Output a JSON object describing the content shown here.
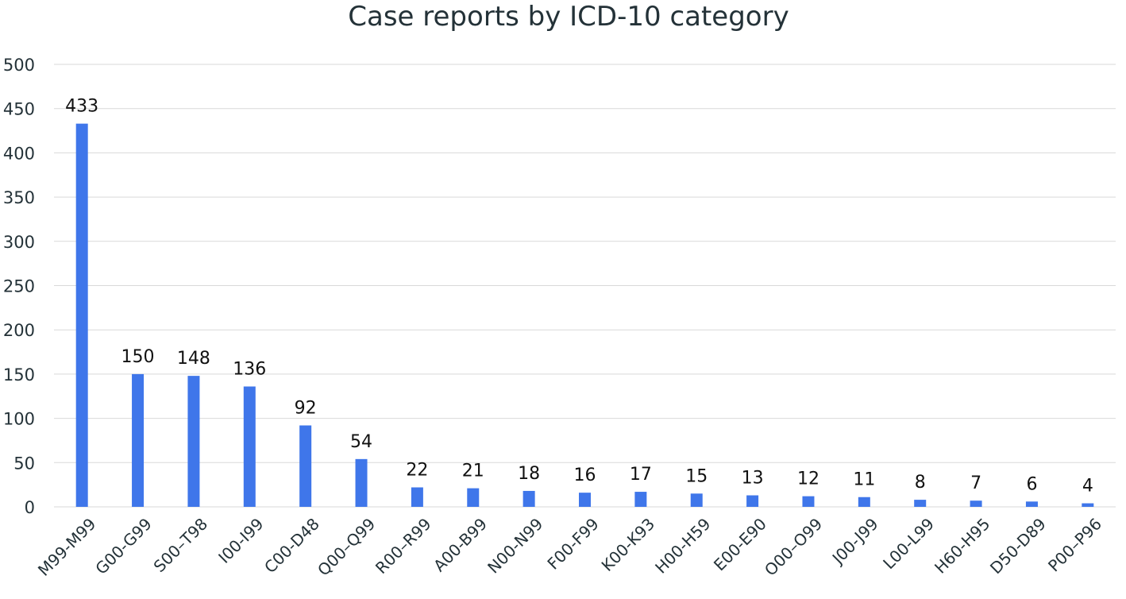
{
  "chart_data": {
    "type": "bar",
    "title": "Case reports by ICD-10 category",
    "xlabel": "",
    "ylabel": "",
    "ylim": [
      0,
      500
    ],
    "yticks": [
      0,
      50,
      100,
      150,
      200,
      250,
      300,
      350,
      400,
      450,
      500
    ],
    "grid": true,
    "legend": "none",
    "bar_color": "#3f76ea",
    "categories": [
      "M99-M99",
      "G00-G99",
      "S00–T98",
      "I00-I99",
      "C00-D48",
      "Q00–Q99",
      "R00–R99",
      "A00-B99",
      "N00-N99",
      "F00-F99",
      "K00-K93",
      "H00-H59",
      "E00-E90",
      "O00–O99",
      "J00-J99",
      "L00-L99",
      "H60-H95",
      "D50-D89",
      "P00–P96"
    ],
    "values": [
      433,
      150,
      148,
      136,
      92,
      54,
      22,
      21,
      18,
      16,
      17,
      15,
      13,
      12,
      11,
      8,
      7,
      6,
      4
    ]
  }
}
